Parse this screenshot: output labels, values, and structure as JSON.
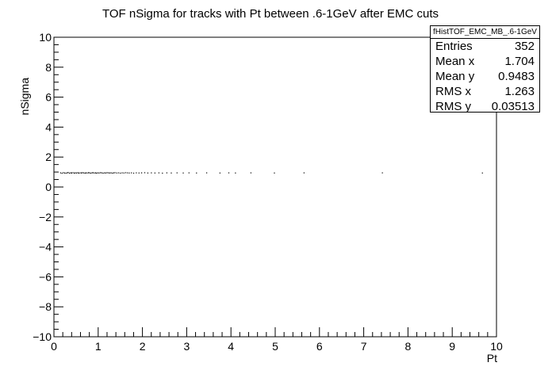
{
  "chart_data": {
    "type": "scatter",
    "title": "TOF nSigma for tracks with Pt between .6-1GeV after EMC cuts",
    "xlabel": "Pt",
    "ylabel": "nSigma",
    "xlim": [
      0,
      10
    ],
    "ylim": [
      -10,
      10
    ],
    "xticks": [
      "0",
      "1",
      "2",
      "3",
      "4",
      "5",
      "6",
      "7",
      "8",
      "9",
      "10"
    ],
    "yticks": [
      "−10",
      "−8",
      "−6",
      "−4",
      "−2",
      "0",
      "2",
      "4",
      "6",
      "8",
      "10"
    ],
    "grid": false,
    "series": [
      {
        "points": [
          [
            0.15,
            0.95
          ],
          [
            0.18,
            0.92
          ],
          [
            0.21,
            0.96
          ],
          [
            0.24,
            0.94
          ],
          [
            0.27,
            0.93
          ],
          [
            0.3,
            0.95
          ],
          [
            0.32,
            0.97
          ],
          [
            0.35,
            0.93
          ],
          [
            0.38,
            0.95
          ],
          [
            0.4,
            0.94
          ],
          [
            0.43,
            0.96
          ],
          [
            0.46,
            0.93
          ],
          [
            0.48,
            0.95
          ],
          [
            0.51,
            0.94
          ],
          [
            0.54,
            0.96
          ],
          [
            0.56,
            0.93
          ],
          [
            0.59,
            0.95
          ],
          [
            0.62,
            0.94
          ],
          [
            0.64,
            0.96
          ],
          [
            0.67,
            0.95
          ],
          [
            0.7,
            0.93
          ],
          [
            0.72,
            0.95
          ],
          [
            0.75,
            0.94
          ],
          [
            0.78,
            0.96
          ],
          [
            0.8,
            0.95
          ],
          [
            0.83,
            0.93
          ],
          [
            0.86,
            0.95
          ],
          [
            0.88,
            0.96
          ],
          [
            0.91,
            0.94
          ],
          [
            0.94,
            0.95
          ],
          [
            0.96,
            0.93
          ],
          [
            0.99,
            0.95
          ],
          [
            1.02,
            0.94
          ],
          [
            1.05,
            0.96
          ],
          [
            1.08,
            0.95
          ],
          [
            1.11,
            0.93
          ],
          [
            1.14,
            0.95
          ],
          [
            1.17,
            0.94
          ],
          [
            1.2,
            0.96
          ],
          [
            1.23,
            0.95
          ],
          [
            1.26,
            0.94
          ],
          [
            1.29,
            0.95
          ],
          [
            1.32,
            0.93
          ],
          [
            1.35,
            0.95
          ],
          [
            1.38,
            0.96
          ],
          [
            1.42,
            0.94
          ],
          [
            1.46,
            0.95
          ],
          [
            1.5,
            0.93
          ],
          [
            1.54,
            0.95
          ],
          [
            1.58,
            0.94
          ],
          [
            1.62,
            0.96
          ],
          [
            1.66,
            0.95
          ],
          [
            1.7,
            0.94
          ],
          [
            1.75,
            0.95
          ],
          [
            1.8,
            0.93
          ],
          [
            1.86,
            0.95
          ],
          [
            1.92,
            0.94
          ],
          [
            1.98,
            0.95
          ],
          [
            2.05,
            0.96
          ],
          [
            2.12,
            0.94
          ],
          [
            2.2,
            0.95
          ],
          [
            2.28,
            0.94
          ],
          [
            2.37,
            0.95
          ],
          [
            2.45,
            0.93
          ],
          [
            2.55,
            0.95
          ],
          [
            2.65,
            0.94
          ],
          [
            2.78,
            0.95
          ],
          [
            2.92,
            0.94
          ],
          [
            3.05,
            0.95
          ],
          [
            3.22,
            0.94
          ],
          [
            3.45,
            0.95
          ],
          [
            3.75,
            0.94
          ],
          [
            3.95,
            0.95
          ],
          [
            4.1,
            0.94
          ],
          [
            4.45,
            0.95
          ],
          [
            4.98,
            0.94
          ],
          [
            5.65,
            0.95
          ],
          [
            7.42,
            0.95
          ],
          [
            9.68,
            0.94
          ]
        ]
      }
    ]
  },
  "stats": {
    "title": "fHistTOF_EMC_MB_.6-1GeV",
    "rows": [
      {
        "label": "Entries",
        "value": "352"
      },
      {
        "label": "Mean x",
        "value": "1.704"
      },
      {
        "label": "Mean y",
        "value": "0.9483"
      },
      {
        "label": "RMS x",
        "value": "1.263"
      },
      {
        "label": "RMS y",
        "value": "0.03513"
      }
    ]
  }
}
